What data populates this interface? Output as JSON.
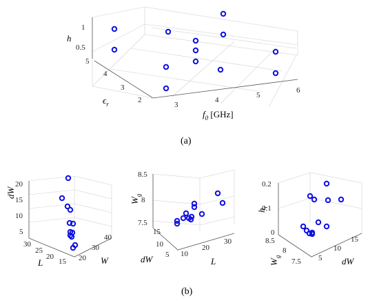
{
  "captions": {
    "a": "(a)",
    "b": "(b)"
  },
  "chart_data": [
    {
      "type": "scatter",
      "panel": "a",
      "xlabel": "f0 [GHz]",
      "ylabel": "εr",
      "zlabel": "h",
      "xticks": [
        "3",
        "4",
        "5",
        "6"
      ],
      "yticks": [
        "2",
        "3",
        "4",
        "5"
      ],
      "zticks": [
        "0.5",
        "1"
      ],
      "points": [
        {
          "x": 2.6,
          "y": 5.0,
          "z": 1.0
        },
        {
          "x": 2.6,
          "y": 5.0,
          "z": 0.5
        },
        {
          "x": 3.3,
          "y": 5.4,
          "z": 1.0
        },
        {
          "x": 2.6,
          "y": 2.6,
          "z": 0.5
        },
        {
          "x": 2.6,
          "y": 2.6,
          "z": 0.1
        },
        {
          "x": 4.0,
          "y": 4.3,
          "z": 0.9
        },
        {
          "x": 4.0,
          "y": 4.3,
          "z": 0.6
        },
        {
          "x": 4.0,
          "y": 4.3,
          "z": 0.35
        },
        {
          "x": 5.0,
          "y": 5.0,
          "z": 1.2
        },
        {
          "x": 5.0,
          "y": 5.0,
          "z": 0.85
        },
        {
          "x": 5.1,
          "y": 3.0,
          "z": 0.2
        },
        {
          "x": 6.0,
          "y": 3.6,
          "z": 0.6
        },
        {
          "x": 6.0,
          "y": 3.6,
          "z": 0.2
        }
      ]
    },
    {
      "type": "scatter",
      "panel": "b1",
      "xlabel": "W",
      "ylabel": "L",
      "zlabel": "dW",
      "xticks": [
        "20",
        "30",
        "40"
      ],
      "yticks": [
        "15",
        "20",
        "25",
        "30"
      ],
      "zticks": [
        "5",
        "10",
        "15",
        "20"
      ],
      "points": [
        {
          "x": 20,
          "y": 18,
          "z": 20
        },
        {
          "x": 20,
          "y": 22,
          "z": 14.5
        },
        {
          "x": 20,
          "y": 20,
          "z": 12.5
        },
        {
          "x": 22,
          "y": 20,
          "z": 12
        },
        {
          "x": 22,
          "y": 18,
          "z": 8.5
        },
        {
          "x": 24,
          "y": 16,
          "z": 8.5
        },
        {
          "x": 22,
          "y": 18,
          "z": 6.5
        },
        {
          "x": 24,
          "y": 16,
          "z": 6.5
        },
        {
          "x": 22,
          "y": 18,
          "z": 5.5
        },
        {
          "x": 23,
          "y": 17,
          "z": 5.2
        },
        {
          "x": 30,
          "y": 16,
          "z": 4.5
        },
        {
          "x": 30,
          "y": 15,
          "z": 3.5
        }
      ]
    },
    {
      "type": "scatter",
      "panel": "b2",
      "xlabel": "L",
      "ylabel": "dW",
      "zlabel": "Wg",
      "xticks": [
        "10",
        "20",
        "30"
      ],
      "yticks": [
        "5",
        "10",
        "15"
      ],
      "zticks": [
        "7.5",
        "8",
        "8.5"
      ],
      "points": [
        {
          "x": 10,
          "y": 12,
          "z": 7.55
        },
        {
          "x": 10,
          "y": 12,
          "z": 7.5
        },
        {
          "x": 13,
          "y": 12,
          "z": 7.6
        },
        {
          "x": 15,
          "y": 13,
          "z": 7.75
        },
        {
          "x": 18,
          "y": 13,
          "z": 7.85
        },
        {
          "x": 18,
          "y": 13,
          "z": 7.9
        },
        {
          "x": 16,
          "y": 12,
          "z": 7.62
        },
        {
          "x": 17,
          "y": 12,
          "z": 7.6
        },
        {
          "x": 18,
          "y": 12,
          "z": 7.6
        },
        {
          "x": 22,
          "y": 12,
          "z": 7.75
        },
        {
          "x": 30,
          "y": 13,
          "z": 8.1
        },
        {
          "x": 31,
          "y": 12,
          "z": 7.95
        }
      ]
    },
    {
      "type": "scatter",
      "panel": "b3",
      "xlabel": "dW",
      "ylabel": "Wg",
      "zlabel": "hr",
      "xticks": [
        "5",
        "10",
        "15"
      ],
      "yticks": [
        "7.5",
        "8",
        "8.5"
      ],
      "zticks": [
        "0",
        "0.1",
        "0.2"
      ],
      "points": [
        {
          "x": 10,
          "y": 8.3,
          "z": 0.15
        },
        {
          "x": 10,
          "y": 8.3,
          "z": 0.14
        },
        {
          "x": 12,
          "y": 8.2,
          "z": 0.17
        },
        {
          "x": 11,
          "y": 8.0,
          "z": 0.12
        },
        {
          "x": 15,
          "y": 8.2,
          "z": 0.13
        },
        {
          "x": 5,
          "y": 8.0,
          "z": 0.03
        },
        {
          "x": 6,
          "y": 7.9,
          "z": 0.02
        },
        {
          "x": 7,
          "y": 7.8,
          "z": 0.02
        },
        {
          "x": 8,
          "y": 7.7,
          "z": 0.01
        },
        {
          "x": 9,
          "y": 7.6,
          "z": 0.04
        },
        {
          "x": 12,
          "y": 7.7,
          "z": 0.05
        },
        {
          "x": 13,
          "y": 7.6,
          "z": 0.02
        }
      ]
    }
  ]
}
